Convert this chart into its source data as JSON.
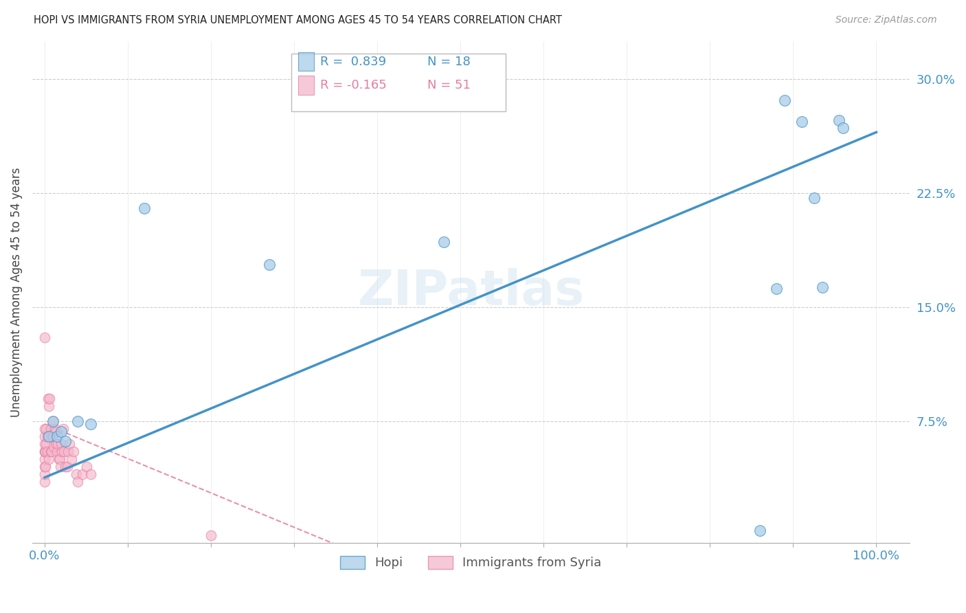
{
  "title": "HOPI VS IMMIGRANTS FROM SYRIA UNEMPLOYMENT AMONG AGES 45 TO 54 YEARS CORRELATION CHART",
  "source_text": "Source: ZipAtlas.com",
  "ylabel": "Unemployment Among Ages 45 to 54 years",
  "x_ticks": [
    0.0,
    0.1,
    0.2,
    0.3,
    0.4,
    0.5,
    0.6,
    0.7,
    0.8,
    0.9,
    1.0
  ],
  "x_tick_labels": [
    "0.0%",
    "",
    "",
    "",
    "",
    "",
    "",
    "",
    "",
    "",
    "100.0%"
  ],
  "y_ticks": [
    0.0,
    0.075,
    0.15,
    0.225,
    0.3
  ],
  "y_tick_labels": [
    "",
    "7.5%",
    "15.0%",
    "22.5%",
    "30.0%"
  ],
  "xlim": [
    -0.015,
    1.04
  ],
  "ylim": [
    -0.005,
    0.325
  ],
  "hopi_R": 0.839,
  "hopi_N": 18,
  "syria_R": -0.165,
  "syria_N": 51,
  "hopi_color": "#a8cce8",
  "syria_color": "#f4b8cc",
  "hopi_line_color": "#4393c7",
  "syria_line_color": "#e87ca0",
  "watermark": "ZIPatlas",
  "hopi_x": [
    0.005,
    0.01,
    0.015,
    0.02,
    0.025,
    0.04,
    0.055,
    0.12,
    0.27,
    0.48,
    0.86,
    0.88,
    0.89,
    0.91,
    0.925,
    0.935,
    0.955,
    0.96
  ],
  "hopi_y": [
    0.065,
    0.075,
    0.065,
    0.068,
    0.062,
    0.075,
    0.073,
    0.215,
    0.178,
    0.193,
    0.003,
    0.162,
    0.286,
    0.272,
    0.222,
    0.163,
    0.273,
    0.268
  ],
  "syria_x": [
    0.0,
    0.0,
    0.0,
    0.0,
    0.0,
    0.0,
    0.0,
    0.0,
    0.0,
    0.0,
    0.001,
    0.001,
    0.002,
    0.002,
    0.003,
    0.003,
    0.004,
    0.005,
    0.005,
    0.006,
    0.007,
    0.007,
    0.008,
    0.009,
    0.01,
    0.01,
    0.011,
    0.012,
    0.013,
    0.014,
    0.015,
    0.016,
    0.017,
    0.018,
    0.019,
    0.02,
    0.021,
    0.022,
    0.023,
    0.025,
    0.027,
    0.028,
    0.03,
    0.032,
    0.035,
    0.038,
    0.04,
    0.045,
    0.05,
    0.055,
    0.2
  ],
  "syria_y": [
    0.035,
    0.04,
    0.045,
    0.05,
    0.055,
    0.055,
    0.06,
    0.065,
    0.07,
    0.13,
    0.045,
    0.055,
    0.06,
    0.07,
    0.055,
    0.065,
    0.09,
    0.05,
    0.085,
    0.09,
    0.055,
    0.07,
    0.055,
    0.065,
    0.065,
    0.075,
    0.058,
    0.07,
    0.068,
    0.06,
    0.055,
    0.06,
    0.05,
    0.05,
    0.045,
    0.06,
    0.055,
    0.07,
    0.055,
    0.045,
    0.045,
    0.055,
    0.06,
    0.05,
    0.055,
    0.04,
    0.035,
    0.04,
    0.045,
    0.04,
    0.0
  ]
}
